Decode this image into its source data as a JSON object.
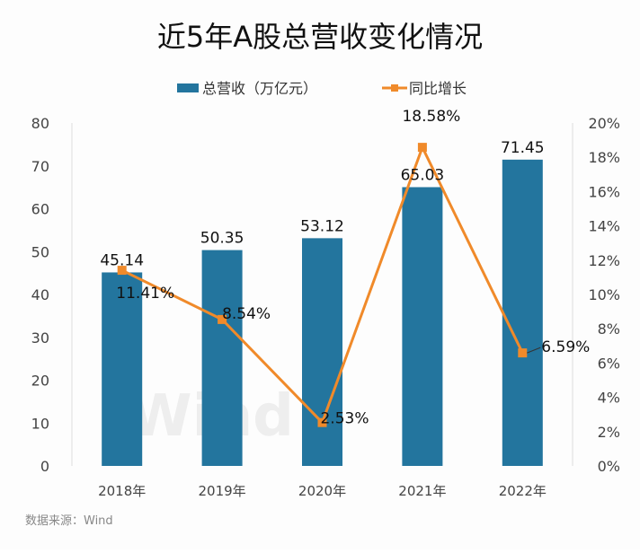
{
  "chart_data": {
    "type": "bar+line",
    "title": "近5年A股总营收变化情况",
    "categories": [
      "2018年",
      "2019年",
      "2020年",
      "2021年",
      "2022年"
    ],
    "series": [
      {
        "name": "总营收（万亿元）",
        "type": "bar",
        "axis": "left",
        "values": [
          45.14,
          50.35,
          53.12,
          65.03,
          71.45
        ],
        "labels": [
          "45.14",
          "50.35",
          "53.12",
          "65.03",
          "71.45"
        ],
        "color": "#23759e"
      },
      {
        "name": "同比增长",
        "type": "line",
        "axis": "right",
        "values": [
          11.41,
          8.54,
          2.53,
          18.58,
          6.59
        ],
        "labels": [
          "11.41%",
          "8.54%",
          "2.53%",
          "18.58%",
          "6.59%"
        ],
        "color": "#f08a2a"
      }
    ],
    "y_left": {
      "range": [
        0,
        80
      ],
      "ticks": [
        "0",
        "10",
        "20",
        "30",
        "40",
        "50",
        "60",
        "70",
        "80"
      ]
    },
    "y_right": {
      "range": [
        0,
        20
      ],
      "ticks": [
        "0%",
        "2%",
        "4%",
        "6%",
        "8%",
        "10%",
        "12%",
        "14%",
        "16%",
        "18%",
        "20%"
      ]
    },
    "legend_placement": "top",
    "grid": false,
    "source": "数据来源：Wind",
    "watermark": "Wind"
  }
}
